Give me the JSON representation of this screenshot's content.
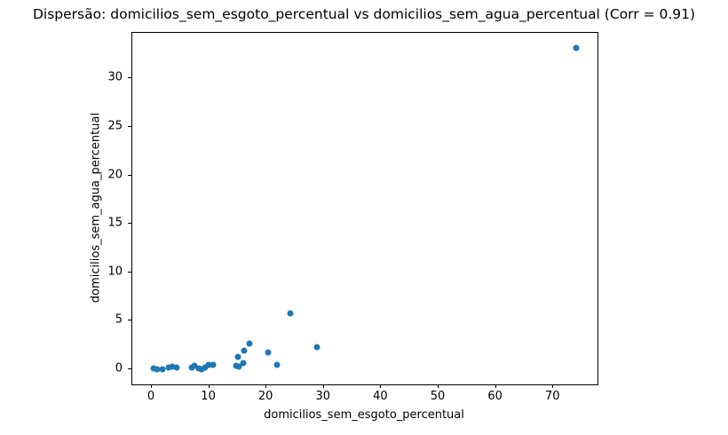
{
  "chart_data": {
    "type": "scatter",
    "title": "Dispersão: domicilios_sem_esgoto_percentual vs domicilios_sem_agua_percentual (Corr = 0.91)",
    "xlabel": "domicilios_sem_esgoto_percentual",
    "ylabel": "domicilios_sem_agua_percentual",
    "correlation": "0.91",
    "xlim": [
      -3.4,
      77.7
    ],
    "ylim": [
      -1.55,
      34.7
    ],
    "x_ticks": [
      0,
      10,
      20,
      30,
      40,
      50,
      60,
      70
    ],
    "y_ticks": [
      0,
      5,
      10,
      15,
      20,
      25,
      30
    ],
    "grid": false,
    "legend": false,
    "marker_color": "#1f77b4",
    "axis_color": "#000000",
    "points": [
      [
        0.3,
        0.1
      ],
      [
        0.9,
        0.05
      ],
      [
        1.9,
        0.0
      ],
      [
        2.9,
        0.15
      ],
      [
        3.6,
        0.3
      ],
      [
        4.3,
        0.2
      ],
      [
        6.9,
        0.15
      ],
      [
        7.5,
        0.35
      ],
      [
        8.2,
        0.1
      ],
      [
        8.6,
        0.0
      ],
      [
        9.3,
        0.2
      ],
      [
        9.9,
        0.5
      ],
      [
        10.7,
        0.45
      ],
      [
        14.7,
        0.4
      ],
      [
        15.0,
        1.25
      ],
      [
        15.1,
        0.25
      ],
      [
        16.0,
        0.65
      ],
      [
        16.1,
        1.9
      ],
      [
        17.1,
        2.7
      ],
      [
        20.3,
        1.7
      ],
      [
        21.9,
        0.45
      ],
      [
        24.2,
        5.8
      ],
      [
        28.8,
        2.3
      ],
      [
        74.0,
        33.1
      ]
    ]
  }
}
